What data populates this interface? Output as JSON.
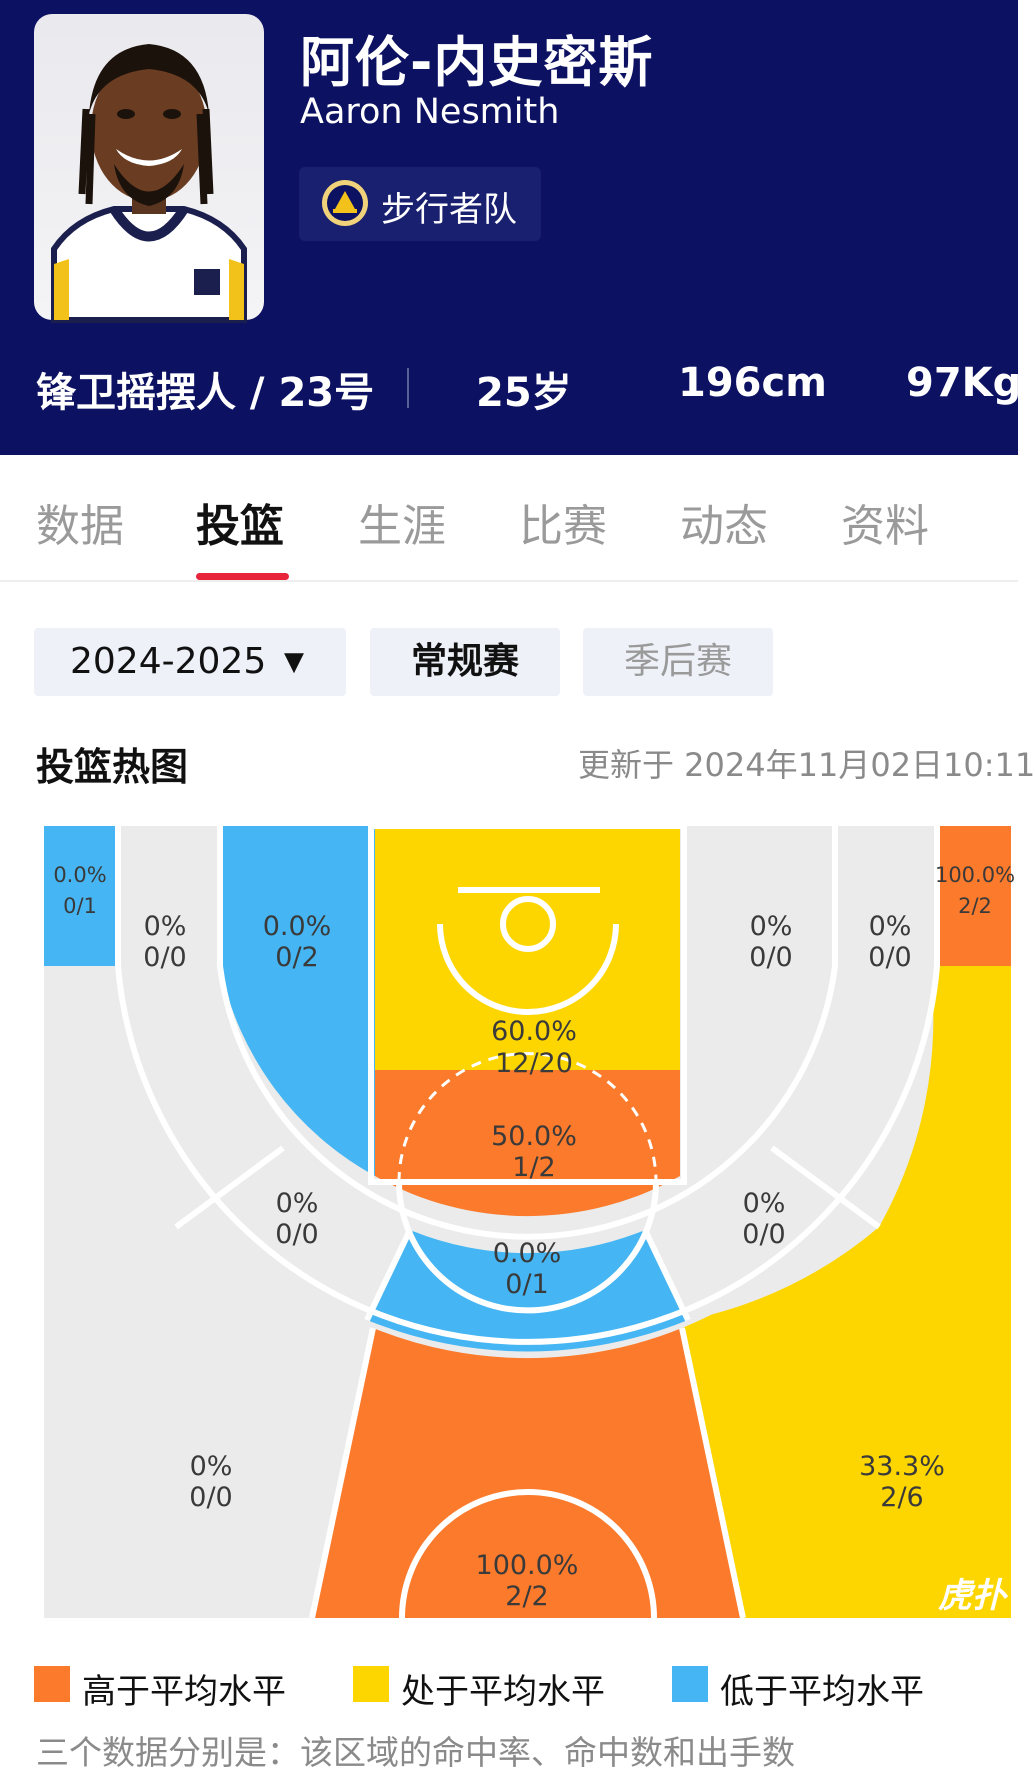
{
  "player": {
    "name_cn": "阿伦-内史密斯",
    "name_en": "Aaron Nesmith",
    "team": "步行者队",
    "position_number": "锋卫摇摆人 / 23号",
    "age": "25岁",
    "height": "196cm",
    "weight": "97Kg"
  },
  "tabs": [
    "数据",
    "投篮",
    "生涯",
    "比赛",
    "动态",
    "资料"
  ],
  "active_tab": "投篮",
  "filters": {
    "season": "2024-2025",
    "season_arrow": "▼",
    "regular": "常规赛",
    "playoffs": "季后赛"
  },
  "section": {
    "title": "投篮热图",
    "updated": "更新于 2024年11月02日10:11"
  },
  "colors": {
    "header_bg": "#0c1161",
    "above": "#fb7a2b",
    "average": "#fdd600",
    "below": "#45b6f3",
    "none": "#ebebeb",
    "tab_accent": "#e8243a"
  },
  "zones": {
    "left_corner_3": {
      "pct": "0.0%",
      "made": "0/1",
      "level": "below"
    },
    "left_baseline_2": {
      "pct": "0%",
      "made": "0/0",
      "level": "none"
    },
    "left_short_2": {
      "pct": "0.0%",
      "made": "0/2",
      "level": "below"
    },
    "restricted": {
      "pct": "60.0%",
      "made": "12/20",
      "level": "average"
    },
    "paint": {
      "pct": "50.0%",
      "made": "1/2",
      "level": "above"
    },
    "right_short_2": {
      "pct": "0%",
      "made": "0/0",
      "level": "none"
    },
    "right_baseline_2": {
      "pct": "0%",
      "made": "0/0",
      "level": "none"
    },
    "right_corner_3": {
      "pct": "100.0%",
      "made": "2/2",
      "level": "above"
    },
    "left_wing_2": {
      "pct": "0%",
      "made": "0/0",
      "level": "none"
    },
    "top_key_2": {
      "pct": "0.0%",
      "made": "0/1",
      "level": "below"
    },
    "right_wing_2": {
      "pct": "0%",
      "made": "0/0",
      "level": "none"
    },
    "left_wing_3": {
      "pct": "0%",
      "made": "0/0",
      "level": "none"
    },
    "right_wing_3": {
      "pct": "33.3%",
      "made": "2/6",
      "level": "average"
    },
    "top_3": {
      "pct": "100.0%",
      "made": "2/2",
      "level": "above"
    }
  },
  "legend": [
    {
      "label": "高于平均水平",
      "level": "above"
    },
    {
      "label": "处于平均水平",
      "level": "average"
    },
    {
      "label": "低于平均水平",
      "level": "below"
    }
  ],
  "footnote": "三个数据分别是：该区域的命中率、命中数和出手数",
  "watermark": "虎扑"
}
